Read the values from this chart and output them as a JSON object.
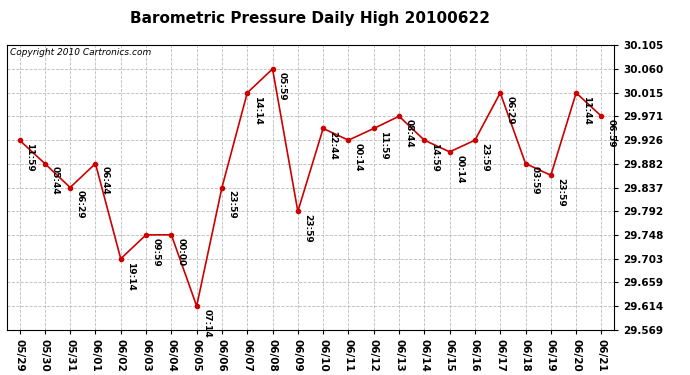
{
  "title": "Barometric Pressure Daily High 20100622",
  "copyright": "Copyright 2010 Cartronics.com",
  "x_labels": [
    "05/29",
    "05/30",
    "05/31",
    "06/01",
    "06/02",
    "06/03",
    "06/04",
    "06/05",
    "06/06",
    "06/07",
    "06/08",
    "06/09",
    "06/10",
    "06/11",
    "06/12",
    "06/13",
    "06/14",
    "06/15",
    "06/16",
    "06/17",
    "06/18",
    "06/19",
    "06/20",
    "06/21"
  ],
  "y_values": [
    29.926,
    29.882,
    29.837,
    29.882,
    29.703,
    29.748,
    29.748,
    29.614,
    29.837,
    30.015,
    30.06,
    29.792,
    29.948,
    29.926,
    29.948,
    29.971,
    29.926,
    29.904,
    29.926,
    30.015,
    29.882,
    29.86,
    30.015,
    29.971
  ],
  "time_labels": [
    "11:59",
    "05:44",
    "06:29",
    "06:44",
    "19:14",
    "09:59",
    "00:00",
    "07:14",
    "23:59",
    "14:14",
    "05:59",
    "23:59",
    "22:44",
    "00:14",
    "11:59",
    "08:44",
    "14:59",
    "00:14",
    "23:59",
    "06:29",
    "03:59",
    "23:59",
    "11:44",
    "06:59"
  ],
  "ylim_min": 29.569,
  "ylim_max": 30.105,
  "yticks": [
    29.569,
    29.614,
    29.659,
    29.703,
    29.748,
    29.792,
    29.837,
    29.882,
    29.926,
    29.971,
    30.015,
    30.06,
    30.105
  ],
  "line_color": "#cc0000",
  "marker_color": "#cc0000",
  "background_color": "#ffffff",
  "grid_color": "#bbbbbb",
  "title_fontsize": 11,
  "copyright_fontsize": 6.5,
  "label_fontsize": 6.5,
  "tick_fontsize": 7.5
}
